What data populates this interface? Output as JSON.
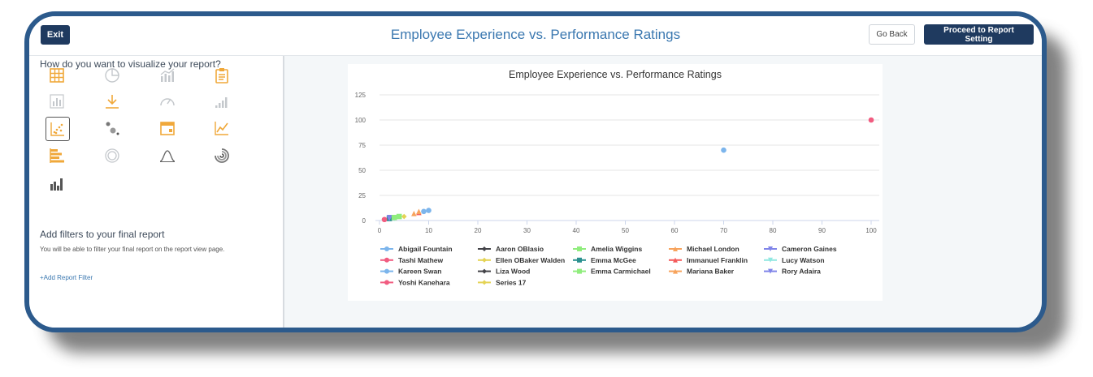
{
  "header": {
    "exit_label": "Exit",
    "title": "Employee Experience vs. Performance Ratings",
    "go_back_label": "Go Back",
    "proceed_label": "Proceed to Report Setting"
  },
  "left_panel": {
    "heading": "How do you want to visualize your report?",
    "icons": [
      {
        "name": "table-icon",
        "active": true
      },
      {
        "name": "pie-chart-icon",
        "active": false
      },
      {
        "name": "combo-chart-icon",
        "active": false
      },
      {
        "name": "clipboard-icon",
        "active": true
      },
      {
        "name": "bar-chart-icon",
        "active": false
      },
      {
        "name": "download-icon",
        "active": true
      },
      {
        "name": "gauge-icon",
        "active": false
      },
      {
        "name": "signal-bars-icon",
        "active": false
      },
      {
        "name": "scatter-chart-icon",
        "active": true,
        "selected": true
      },
      {
        "name": "bubble-chart-icon",
        "active": false
      },
      {
        "name": "calendar-icon",
        "active": true
      },
      {
        "name": "line-chart-icon",
        "active": true
      },
      {
        "name": "horizontal-bar-icon",
        "active": true
      },
      {
        "name": "donut-icon",
        "active": false
      },
      {
        "name": "bell-curve-icon",
        "active": false
      },
      {
        "name": "radial-bar-icon",
        "active": false
      },
      {
        "name": "histogram-icon",
        "active": false
      }
    ],
    "filters_title": "Add filters to your final report",
    "filters_desc": "You will be able to filter your final report on the report view page.",
    "add_filter_label": "+Add Report Filter"
  },
  "colors": {
    "accent": "#1f3a5f",
    "title_blue": "#3b78b0",
    "icon_orange": "#f0a83a",
    "icon_gray": "#c4c8cc"
  },
  "chart_data": {
    "type": "scatter",
    "title": "Employee Experience vs. Performance Ratings",
    "xlim": [
      0,
      100
    ],
    "ylim": [
      0,
      125
    ],
    "x_ticks": [
      0,
      10,
      20,
      30,
      40,
      50,
      60,
      70,
      80,
      90,
      100
    ],
    "y_ticks": [
      0,
      25,
      50,
      75,
      100,
      125
    ],
    "grid": "horizontal",
    "legend_position": "bottom",
    "series": [
      {
        "name": "Abigail Fountain",
        "color": "#7cb5ec",
        "marker": "circle",
        "points": [
          [
            10,
            10
          ],
          [
            70,
            70
          ]
        ]
      },
      {
        "name": "Aaron OBlasio",
        "color": "#434348",
        "marker": "diamond",
        "points": [
          [
            2,
            2
          ]
        ]
      },
      {
        "name": "Amelia Wiggins",
        "color": "#90ed7d",
        "marker": "square",
        "points": [
          [
            4,
            4
          ]
        ]
      },
      {
        "name": "Michael London",
        "color": "#f7a35c",
        "marker": "triangle",
        "points": [
          [
            7,
            7
          ]
        ]
      },
      {
        "name": "Cameron Gaines",
        "color": "#8085e9",
        "marker": "triangle-down",
        "points": [
          [
            2,
            3
          ]
        ]
      },
      {
        "name": "Tashi Mathew",
        "color": "#f15c80",
        "marker": "circle",
        "points": [
          [
            100,
            100
          ]
        ]
      },
      {
        "name": "Ellen OBaker Walden",
        "color": "#e4d354",
        "marker": "diamond",
        "points": [
          [
            3,
            3
          ]
        ]
      },
      {
        "name": "Emma McGee",
        "color": "#2b908f",
        "marker": "square",
        "points": [
          [
            2,
            2
          ]
        ]
      },
      {
        "name": "Immanuel Franklin",
        "color": "#f45b5b",
        "marker": "triangle",
        "points": [
          [
            8,
            8
          ]
        ]
      },
      {
        "name": "Lucy Watson",
        "color": "#91e8e1",
        "marker": "triangle-down",
        "points": [
          [
            3,
            2
          ]
        ]
      },
      {
        "name": "Kareen Swan",
        "color": "#7cb5ec",
        "marker": "circle",
        "points": [
          [
            9,
            9
          ]
        ]
      },
      {
        "name": "Liza Wood",
        "color": "#434348",
        "marker": "diamond",
        "points": [
          [
            1,
            1
          ]
        ]
      },
      {
        "name": "Emma Carmichael",
        "color": "#90ed7d",
        "marker": "square",
        "points": [
          [
            3,
            3
          ]
        ]
      },
      {
        "name": "Mariana Baker",
        "color": "#f7a35c",
        "marker": "triangle",
        "points": [
          [
            8,
            9
          ]
        ]
      },
      {
        "name": "Rory Adaira",
        "color": "#8085e9",
        "marker": "triangle-down",
        "points": [
          [
            2,
            2
          ]
        ]
      },
      {
        "name": "Yoshi Kanehara",
        "color": "#f15c80",
        "marker": "circle",
        "points": [
          [
            1,
            1
          ]
        ]
      },
      {
        "name": "Series 17",
        "color": "#e4d354",
        "marker": "diamond",
        "points": [
          [
            5,
            4
          ]
        ]
      }
    ]
  }
}
